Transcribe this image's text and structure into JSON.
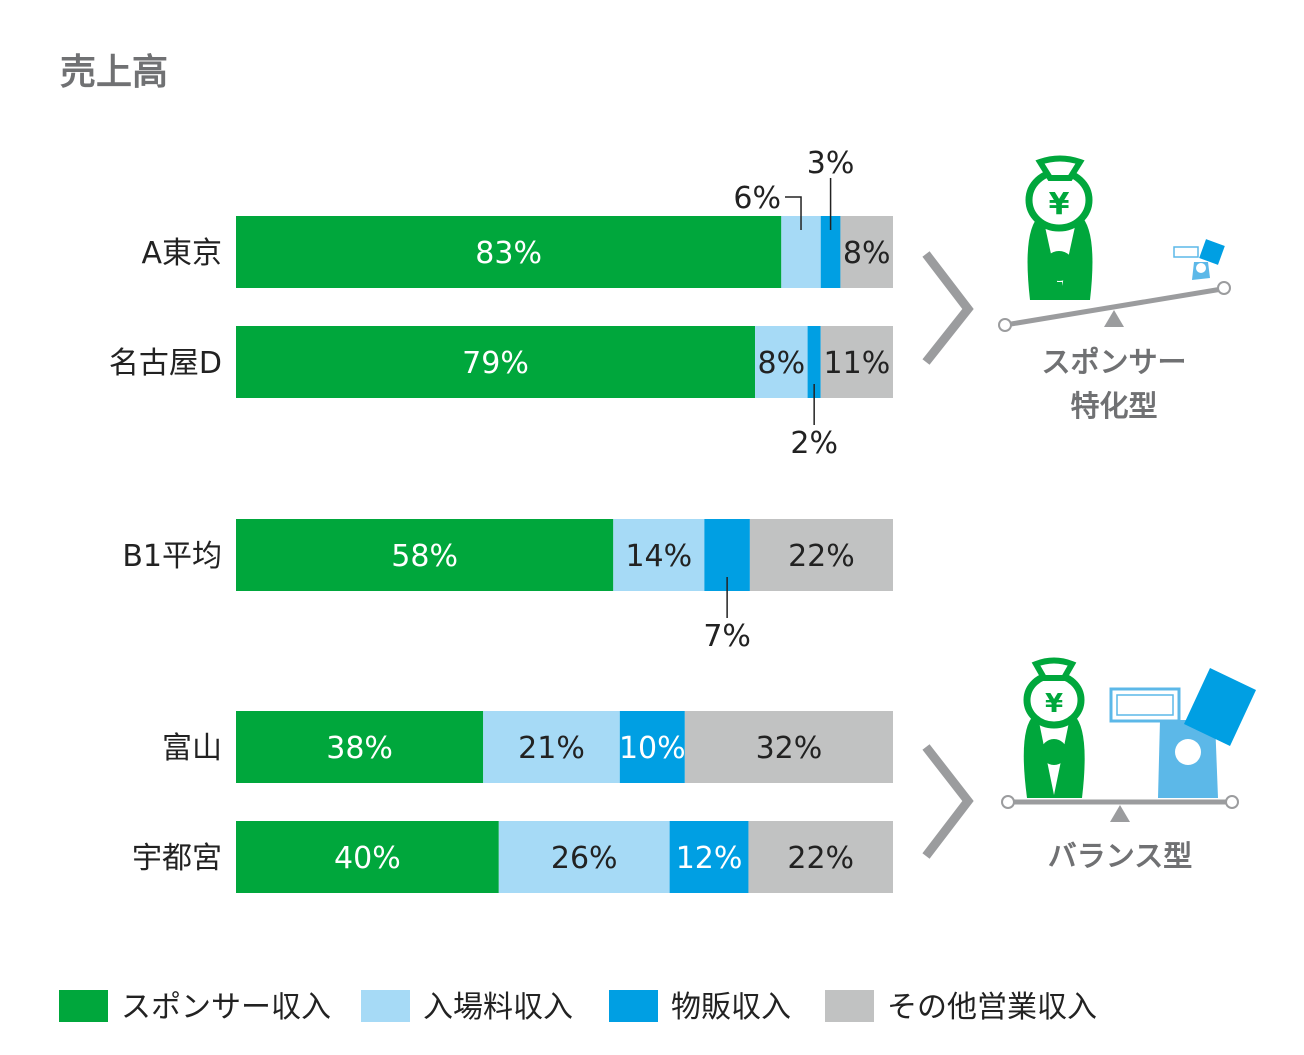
{
  "chart_data": {
    "type": "bar",
    "orientation": "horizontal-stacked-100",
    "title": "売上高",
    "xlabel": "",
    "ylabel": "",
    "unit": "%",
    "series": [
      {
        "name": "スポンサー収入",
        "color": "#00a73c"
      },
      {
        "name": "入場料収入",
        "color": "#a6daf6"
      },
      {
        "name": "物販収入",
        "color": "#009fe3"
      },
      {
        "name": "その他営業収入",
        "color": "#c1c2c2"
      }
    ],
    "rows": [
      {
        "category": "A東京",
        "values": [
          83,
          6,
          3,
          8
        ],
        "labels": [
          "83%",
          "6%",
          "3%",
          "8%"
        ],
        "label_pos": [
          "inside",
          "above-left",
          "above",
          "inside"
        ]
      },
      {
        "category": "名古屋D",
        "values": [
          79,
          8,
          2,
          11
        ],
        "labels": [
          "79%",
          "8%",
          "2%",
          "11%"
        ],
        "label_pos": [
          "inside",
          "inside",
          "below",
          "inside"
        ]
      },
      {
        "category": "B1平均",
        "values": [
          58,
          14,
          7,
          22
        ],
        "labels": [
          "58%",
          "14%",
          "7%",
          "22%"
        ],
        "label_pos": [
          "inside",
          "inside",
          "below",
          "inside"
        ]
      },
      {
        "category": "富山",
        "values": [
          38,
          21,
          10,
          32
        ],
        "labels": [
          "38%",
          "21%",
          "10%",
          "32%"
        ],
        "label_pos": [
          "inside",
          "inside",
          "inside",
          "inside"
        ]
      },
      {
        "category": "宇都宮",
        "values": [
          40,
          26,
          12,
          22
        ],
        "labels": [
          "40%",
          "26%",
          "12%",
          "22%"
        ],
        "label_pos": [
          "inside",
          "inside",
          "inside",
          "inside"
        ]
      }
    ],
    "legend_position": "bottom",
    "grid": false
  },
  "annotations": {
    "sponsor_type": "スポンサー\n特化型",
    "sponsor_type_line1": "スポンサー",
    "sponsor_type_line2": "特化型",
    "balance_type": "バランス型",
    "yen_symbol": "¥"
  }
}
